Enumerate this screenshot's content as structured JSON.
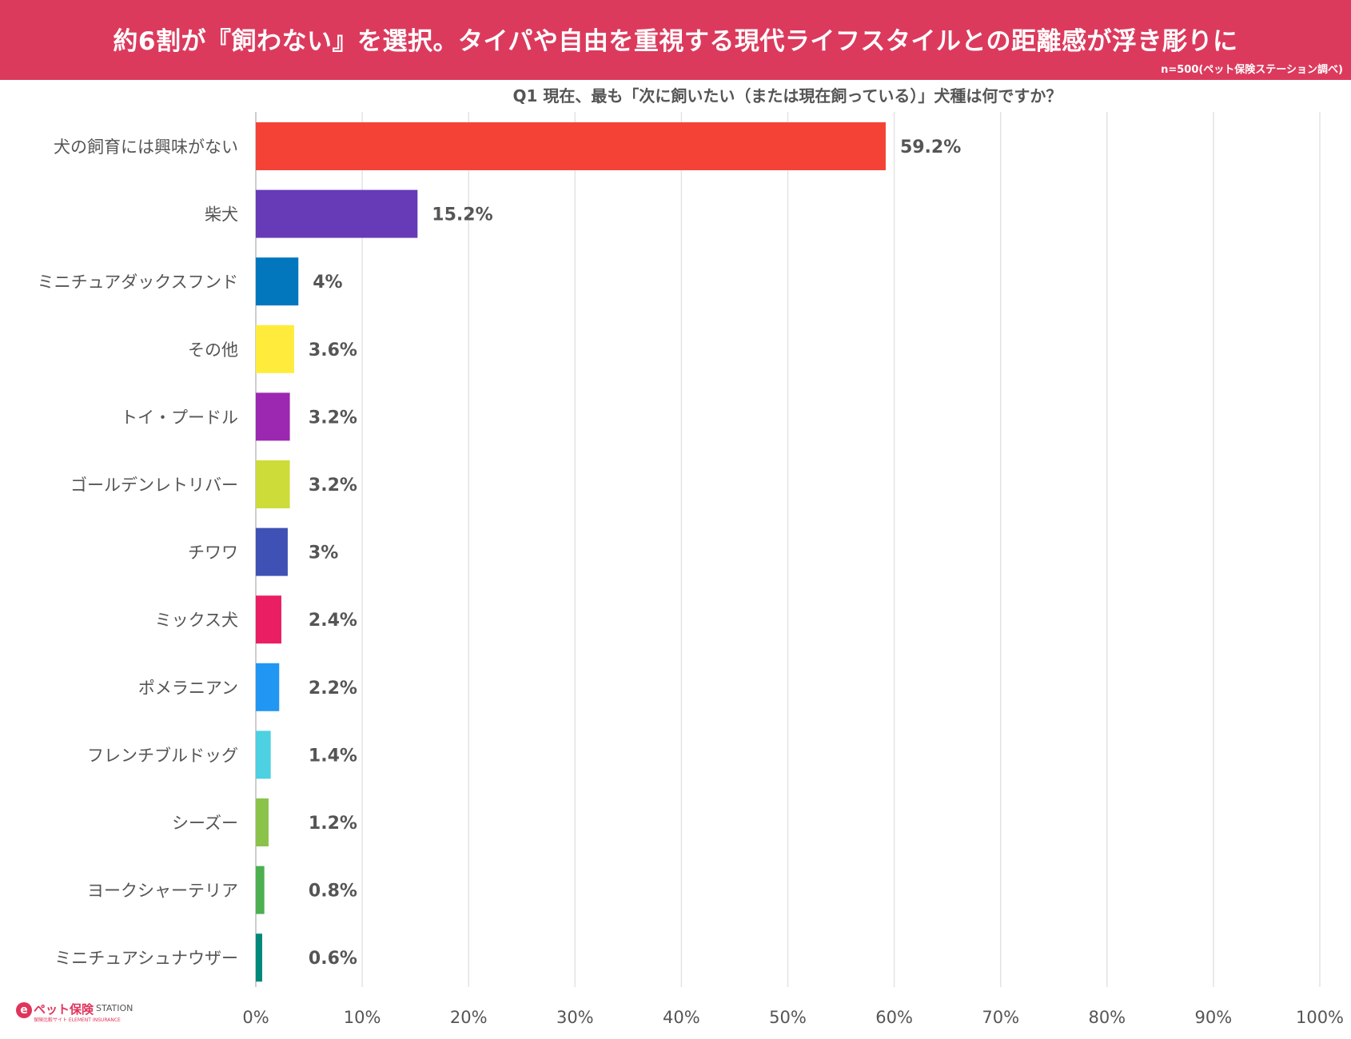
{
  "banner": {
    "title": "約6割が『飼わない』を選択。タイパや自由を重視する現代ライフスタイルとの距離感が浮き彫りに",
    "note": "n=500(ペット保険ステーション調べ)",
    "color": "#dc3a5d"
  },
  "logo": {
    "mark": "e",
    "name": "ペット保険",
    "station": "STATION",
    "sub": "保険比較サイト ELEMENT INSURANCE"
  },
  "chart_data": {
    "type": "bar",
    "orientation": "horizontal",
    "title": "Q1 現在、最も「次に飼いたい（または現在飼っている）」犬種は何ですか？",
    "categories": [
      "犬の飼育には興味がない",
      "柴犬",
      "ミニチュアダックスフンド",
      "その他",
      "トイ・プードル",
      "ゴールデンレトリバー",
      "チワワ",
      "ミックス犬",
      "ポメラニアン",
      "フレンチブルドッグ",
      "シーズー",
      "ヨークシャーテリア",
      "ミニチュアシュナウザー"
    ],
    "values": [
      59.2,
      15.2,
      4,
      3.6,
      3.2,
      3.2,
      3,
      2.4,
      2.2,
      1.4,
      1.2,
      0.8,
      0.6
    ],
    "value_labels": [
      "59.2%",
      "15.2%",
      "4%",
      "3.6%",
      "3.2%",
      "3.2%",
      "3%",
      "2.4%",
      "2.2%",
      "1.4%",
      "1.2%",
      "0.8%",
      "0.6%"
    ],
    "colors": [
      "#f44336",
      "#673ab7",
      "#0277bd",
      "#ffeb3b",
      "#9c27b0",
      "#cddc39",
      "#3f51b5",
      "#e91e63",
      "#2196f3",
      "#4dd0e1",
      "#8bc34a",
      "#4caf50",
      "#00897b"
    ],
    "xlim": [
      0,
      100
    ],
    "xticks": [
      0,
      10,
      20,
      30,
      40,
      50,
      60,
      70,
      80,
      90,
      100
    ],
    "xtick_labels": [
      "0%",
      "10%",
      "20%",
      "30%",
      "40%",
      "50%",
      "60%",
      "70%",
      "80%",
      "90%",
      "100%"
    ],
    "grid": true
  }
}
